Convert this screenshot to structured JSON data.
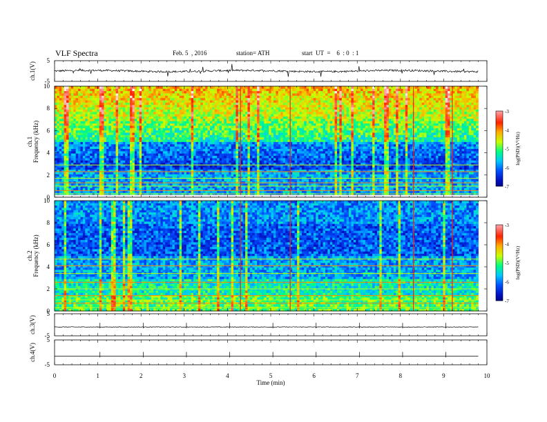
{
  "header": {
    "title": "VLF  Spectra",
    "date": "Feb. 5  , 2016",
    "station": "station= ATH",
    "start": "start  UT  =    6  : 0  : 1"
  },
  "colors": {
    "colormap": [
      "#000060",
      "#0010c0",
      "#0050ff",
      "#00c8ff",
      "#00ff80",
      "#c8ff00",
      "#ffb000",
      "#ff2000",
      "#ff9090",
      "#ffffff"
    ]
  },
  "chart_data": [
    {
      "type": "line",
      "panel": "ch1-waveform",
      "ylabel": "ch.1(V)",
      "ylim": [
        -5,
        5
      ],
      "yticks": [
        "5",
        "-5"
      ],
      "baseline": 0,
      "noise": "medium"
    },
    {
      "type": "heatmap",
      "panel": "ch1-spectrogram",
      "ylabel": "ch.1\nFrequency  (kHz)",
      "ylim": [
        0,
        10
      ],
      "yticks": [
        "0",
        "2",
        "4",
        "6",
        "8",
        "10"
      ],
      "colorbar": {
        "label": "log(PSD)(V²/Hz)",
        "range": [
          -7,
          -3
        ],
        "ticks": [
          "-3",
          "-4",
          "-5",
          "-6",
          "-7"
        ]
      },
      "profile": "ch1"
    },
    {
      "type": "heatmap",
      "panel": "ch2-spectrogram",
      "ylabel": "ch.2\nFrequency  (kHz)",
      "ylim": [
        0,
        10
      ],
      "yticks": [
        "0",
        "2",
        "4",
        "6",
        "8",
        "10"
      ],
      "colorbar": {
        "label": "log(PSD)(V²/Hz)",
        "range": [
          -7,
          -3
        ],
        "ticks": [
          "-3",
          "-4",
          "-5",
          "-6",
          "-7"
        ]
      },
      "profile": "ch2"
    },
    {
      "type": "line",
      "panel": "ch3-waveform",
      "ylabel": "ch.3(V)",
      "ylim": [
        -5,
        5
      ],
      "yticks": [
        "5",
        "-5"
      ],
      "baseline": -1,
      "noise": "low"
    },
    {
      "type": "line",
      "panel": "ch4-waveform",
      "ylabel": "ch.4(V)",
      "ylim": [
        -5,
        5
      ],
      "yticks": [
        "5",
        "-5"
      ],
      "baseline": -1.5,
      "noise": "none"
    }
  ],
  "xaxis": {
    "label": "Time  (min)",
    "xlim": [
      0,
      10
    ],
    "data_end": 9.8,
    "ticks": [
      "0",
      "1",
      "2",
      "3",
      "4",
      "5",
      "6",
      "7",
      "8",
      "9",
      "10"
    ]
  }
}
